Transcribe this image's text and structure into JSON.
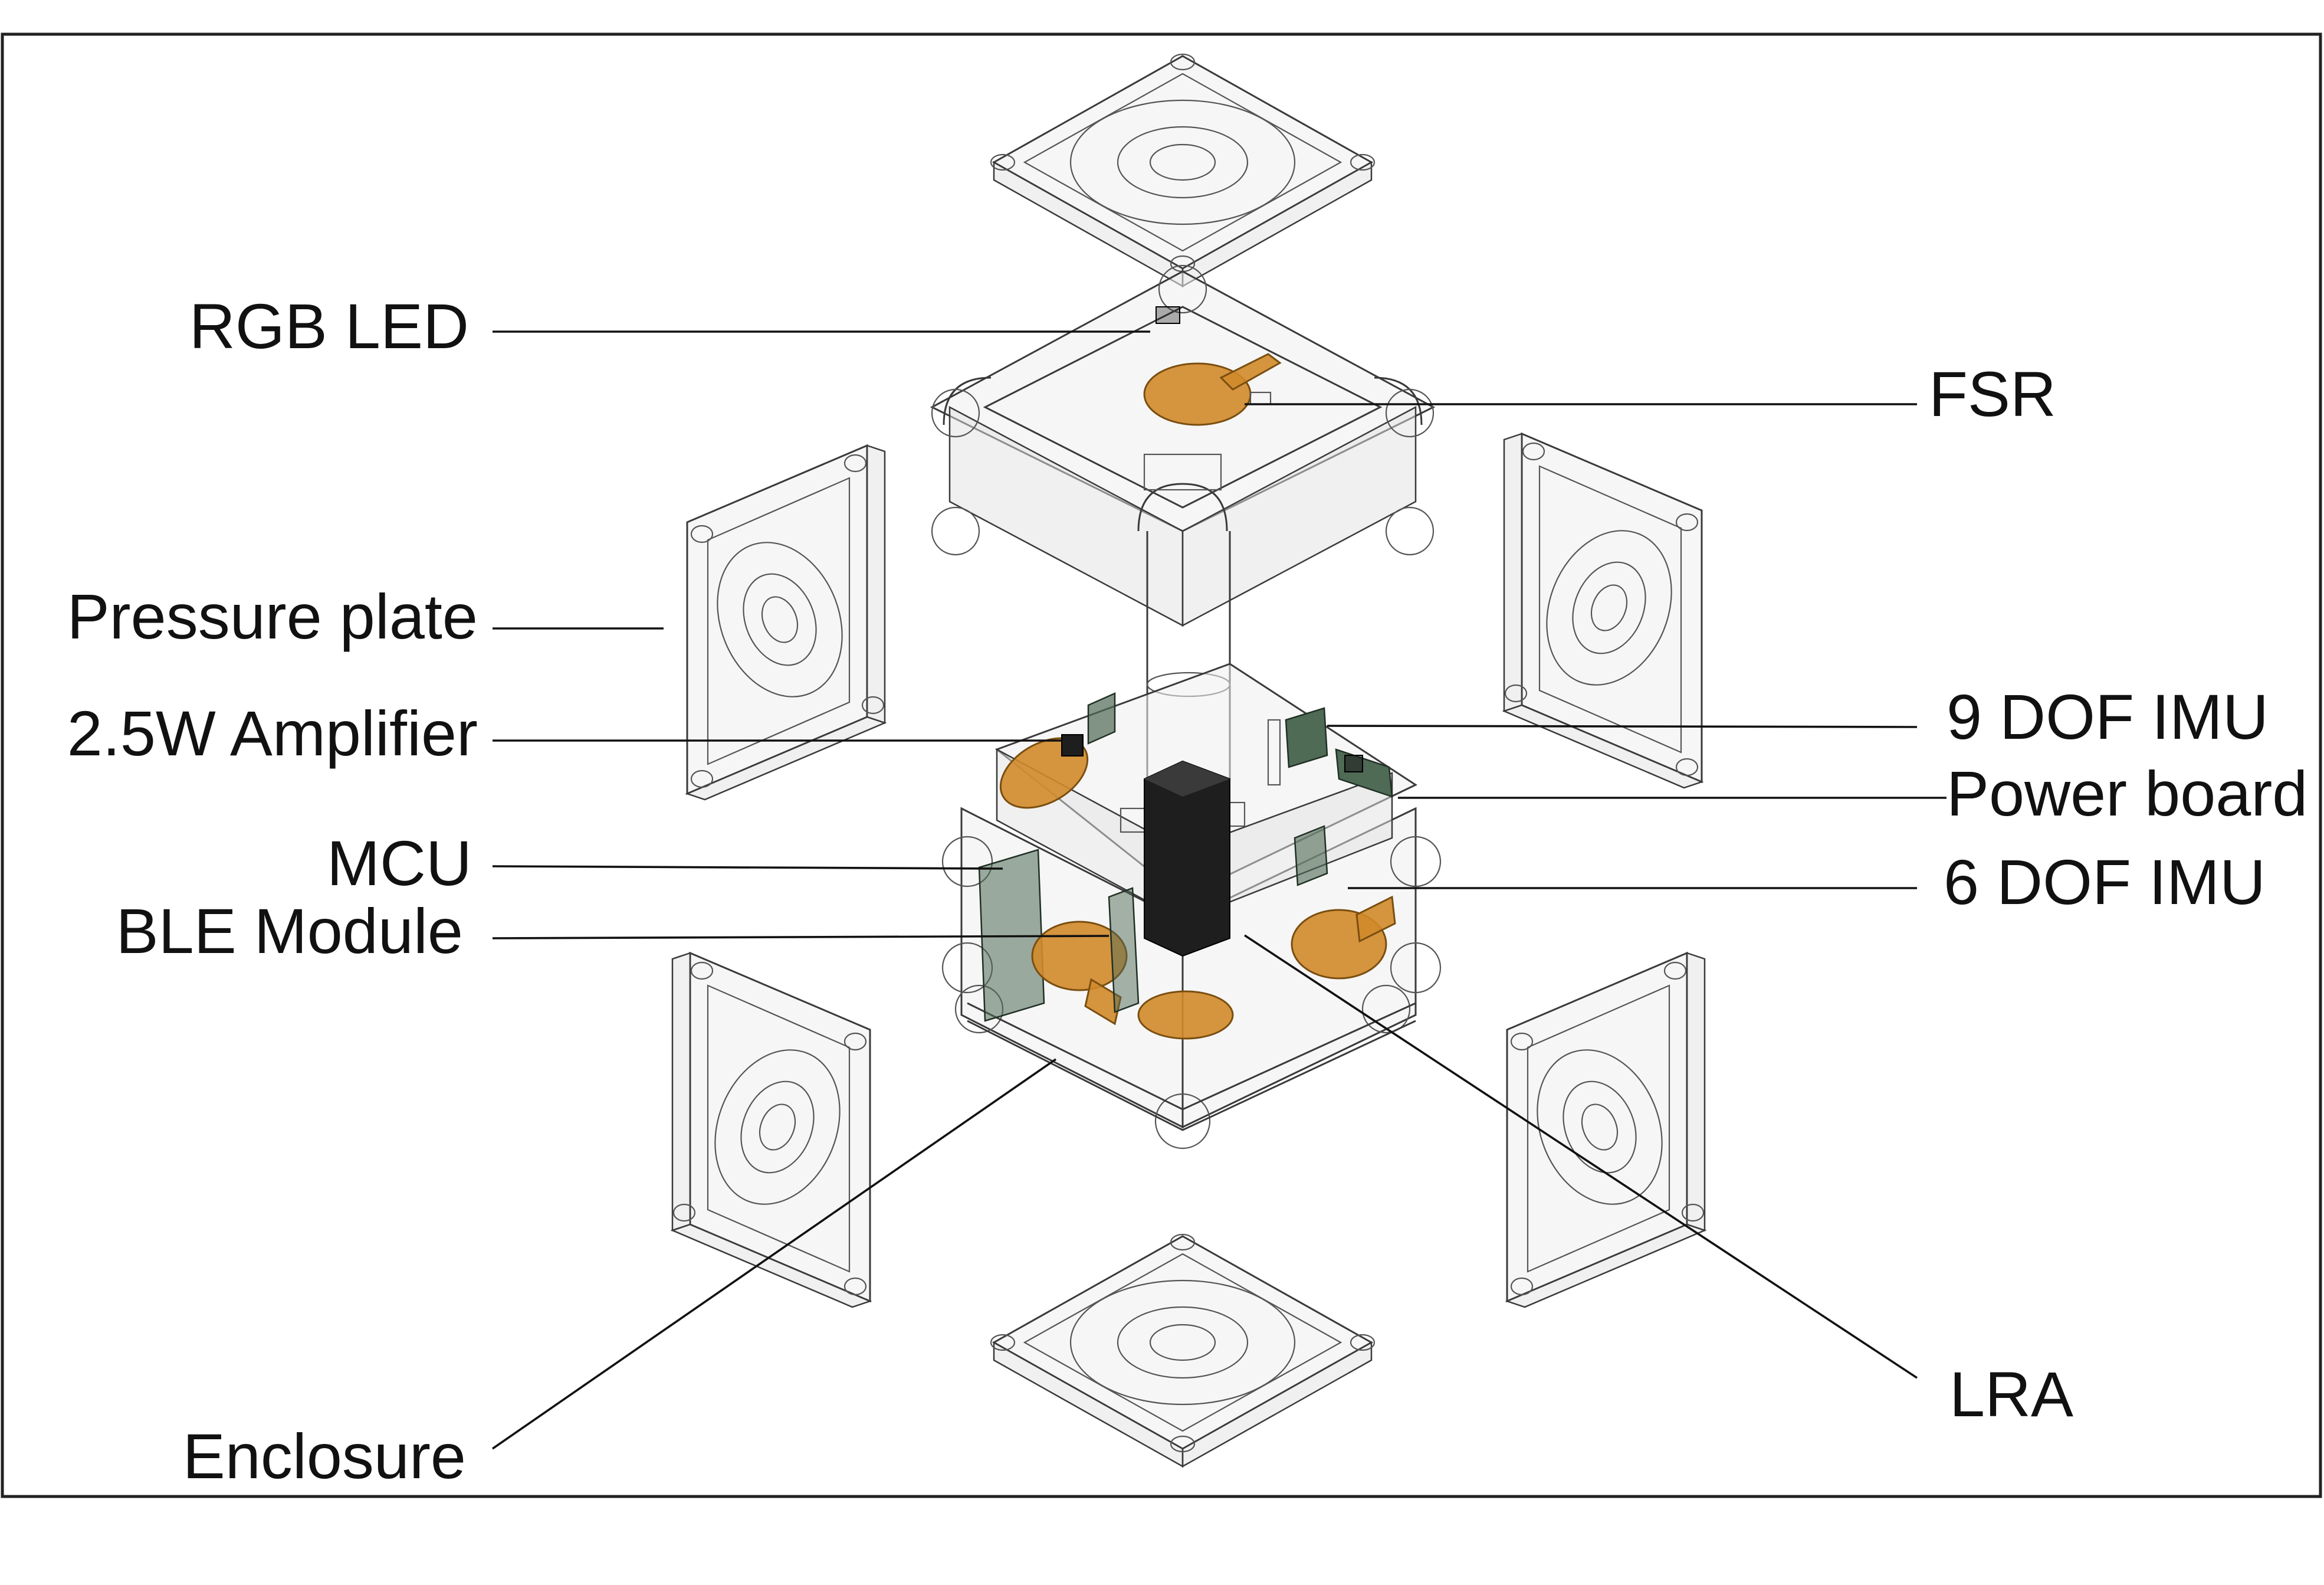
{
  "labels": {
    "rgb_led": "RGB LED",
    "fsr": "FSR",
    "pressure_plate": "Pressure plate",
    "amplifier": "2.5W Amplifier",
    "imu9": "9 DOF IMU",
    "power_board": "Power board",
    "mcu": "MCU",
    "imu6": "6 DOF IMU",
    "ble": "BLE Module",
    "lra": "LRA",
    "enclosure": "Enclosure"
  },
  "colors": {
    "outline": "#3a3a3a",
    "glass": "#efefef",
    "fsr_orange": "#d28a2a",
    "pcb_green": "#4f6a55",
    "battery_black": "#1e1e1e"
  }
}
